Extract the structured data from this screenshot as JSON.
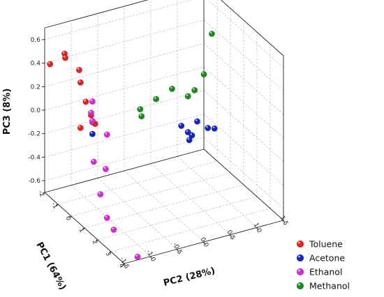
{
  "chart_data": {
    "type": "scatter",
    "axes": {
      "pc1": {
        "label": "PC1 (64%)",
        "ticks": [
          -2,
          -1,
          0,
          1,
          2,
          3,
          4
        ],
        "range": [
          -2,
          4
        ]
      },
      "pc2": {
        "label": "PC2 (28%)",
        "ticks": [
          -1.5,
          -1.0,
          -0.5,
          0.0,
          0.5,
          1.0,
          1.5
        ],
        "tick_labels": [
          "-1.5",
          "-1.0",
          "-0.5",
          "0.0",
          "0.5",
          "1.0",
          "1.5"
        ],
        "range": [
          -1.5,
          1.5
        ]
      },
      "pc3": {
        "label": "PC3 (8%)",
        "ticks": [
          -0.6,
          -0.4,
          -0.2,
          0.0,
          0.2,
          0.4,
          0.6
        ],
        "tick_labels": [
          "-0.6",
          "-0.4",
          "-0.2",
          "0.0",
          "0.2",
          "0.4",
          "0.6"
        ],
        "range": [
          -0.7,
          0.7
        ]
      }
    },
    "grid": true,
    "legend_position": "bottom-right",
    "series": [
      {
        "name": "Toluene",
        "color": "#e8201c",
        "points": [
          {
            "pc1": -1.5,
            "pc2": -1.25,
            "pc3": 0.5
          },
          {
            "pc1": -1.45,
            "pc2": -1.25,
            "pc3": 0.47
          },
          {
            "pc1": -2.0,
            "pc2": -1.4,
            "pc3": 0.38
          },
          {
            "pc1": -0.8,
            "pc2": -1.15,
            "pc3": 0.42
          },
          {
            "pc1": -0.5,
            "pc2": -1.2,
            "pc3": 0.35
          },
          {
            "pc1": -0.3,
            "pc2": -1.15,
            "pc3": 0.2
          },
          {
            "pc1": -0.1,
            "pc2": -1.1,
            "pc3": 0.1
          },
          {
            "pc1": 0.0,
            "pc2": -1.1,
            "pc3": 0.05
          },
          {
            "pc1": 0.0,
            "pc2": -1.05,
            "pc3": 0.03
          },
          {
            "pc1": -0.3,
            "pc2": -1.25,
            "pc3": -0.01
          }
        ]
      },
      {
        "name": "Acetone",
        "color": "#1424c4",
        "points": [
          {
            "pc1": 0.0,
            "pc2": -1.1,
            "pc3": -0.05
          },
          {
            "pc1": 0.5,
            "pc2": 0.45,
            "pc3": -0.12
          },
          {
            "pc1": 0.7,
            "pc2": 0.6,
            "pc3": -0.2
          },
          {
            "pc1": 0.8,
            "pc2": 0.5,
            "pc3": -0.15
          },
          {
            "pc1": 0.5,
            "pc2": 0.75,
            "pc3": -0.12
          },
          {
            "pc1": 0.8,
            "pc2": 1.0,
            "pc3": -0.18
          },
          {
            "pc1": 0.5,
            "pc2": 0.6,
            "pc3": -0.26
          },
          {
            "pc1": 0.5,
            "pc2": 0.95,
            "pc3": -0.2
          }
        ]
      },
      {
        "name": "Ethanol",
        "color": "#d42ad8",
        "points": [
          {
            "pc1": -0.2,
            "pc2": -1.05,
            "pc3": 0.2
          },
          {
            "pc1": -0.1,
            "pc2": -1.1,
            "pc3": 0.12
          },
          {
            "pc1": 0.0,
            "pc2": -1.1,
            "pc3": 0.06
          },
          {
            "pc1": 0.3,
            "pc2": -0.9,
            "pc3": -0.05
          },
          {
            "pc1": 0.3,
            "pc2": -1.15,
            "pc3": -0.25
          },
          {
            "pc1": 0.6,
            "pc2": -1.0,
            "pc3": -0.3
          },
          {
            "pc1": 1.0,
            "pc2": -1.2,
            "pc3": -0.45
          },
          {
            "pc1": 1.5,
            "pc2": -1.2,
            "pc3": -0.6
          },
          {
            "pc1": 2.0,
            "pc2": -1.2,
            "pc3": -0.65
          },
          {
            "pc1": 3.8,
            "pc2": -1.2,
            "pc3": -0.7
          }
        ]
      },
      {
        "name": "Methanol",
        "color": "#1e8a1e",
        "points": [
          {
            "pc1": 0.0,
            "pc2": -0.2,
            "pc3": 0.05
          },
          {
            "pc1": 0.1,
            "pc2": -0.2,
            "pc3": 0.0
          },
          {
            "pc1": 0.0,
            "pc2": 0.1,
            "pc3": 0.1
          },
          {
            "pc1": 0.0,
            "pc2": 0.4,
            "pc3": 0.15
          },
          {
            "pc1": 0.0,
            "pc2": 0.7,
            "pc3": 0.05
          },
          {
            "pc1": 0.1,
            "pc2": 0.8,
            "pc3": 0.1
          },
          {
            "pc1": 0.0,
            "pc2": 1.0,
            "pc3": 0.2
          },
          {
            "pc1": -0.2,
            "pc2": 1.2,
            "pc3": 0.5
          }
        ]
      }
    ]
  }
}
